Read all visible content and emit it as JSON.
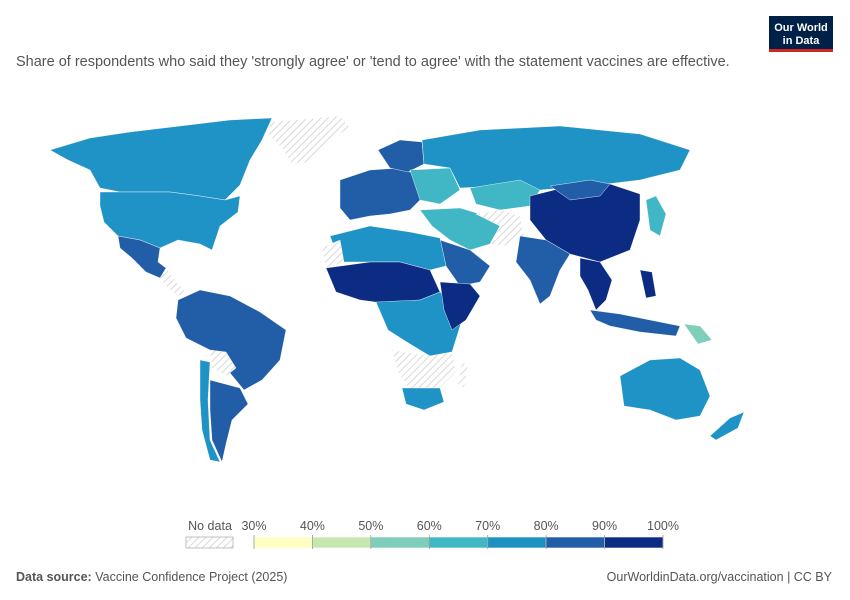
{
  "header": {
    "title": "Share of respondents who said they 'strongly agree' or 'tend to agree' with the statement vaccines are effective.",
    "logo": [
      "Our World",
      "in Data"
    ]
  },
  "legend": {
    "no_data_label": "No data",
    "bins": [
      {
        "value": 30,
        "label": "30%"
      },
      {
        "value": 40,
        "label": "40%"
      },
      {
        "value": 50,
        "label": "50%"
      },
      {
        "value": 60,
        "label": "60%"
      },
      {
        "value": 70,
        "label": "70%"
      },
      {
        "value": 80,
        "label": "80%"
      },
      {
        "value": 90,
        "label": "90%"
      },
      {
        "value": 100,
        "label": "100%"
      }
    ],
    "colors": [
      "#ffffc4",
      "#c6e8b0",
      "#7fcdbb",
      "#41b6c4",
      "#1d91c0",
      "#225ea8",
      "#0c2c84"
    ]
  },
  "footer": {
    "source_label": "Data source:",
    "source": "Vaccine Confidence Project (2025)",
    "url": "OurWorldinData.org/vaccination | CC BY"
  }
}
